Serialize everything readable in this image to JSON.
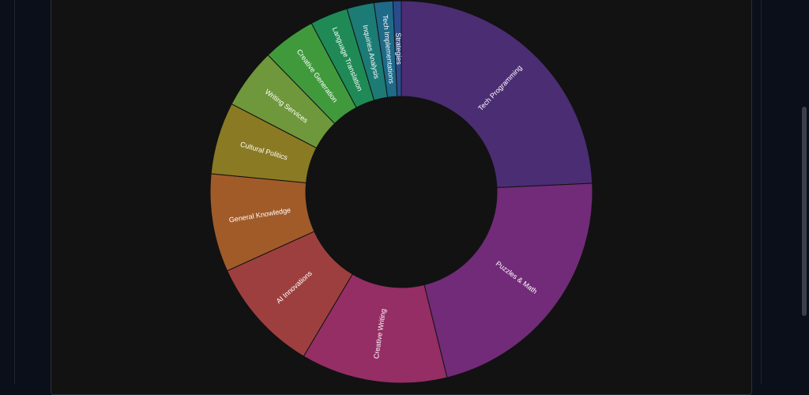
{
  "chart_data": {
    "type": "pie",
    "style": "donut",
    "slices": [
      {
        "label": "Tech Programming",
        "value": 24.3,
        "color": "#4b2d73"
      },
      {
        "label": "Puzzles & Math",
        "value": 21.9,
        "color": "#722b78"
      },
      {
        "label": "Creative Writing",
        "value": 12.4,
        "color": "#952e64"
      },
      {
        "label": "AI Innovations",
        "value": 9.7,
        "color": "#9e3f3f"
      },
      {
        "label": "General Knowledge",
        "value": 8.3,
        "color": "#a15b29"
      },
      {
        "label": "Cultural Politics",
        "value": 6.1,
        "color": "#8a7a23"
      },
      {
        "label": "Writing Services",
        "value": 5.1,
        "color": "#6f973b"
      },
      {
        "label": "Creative Generation",
        "value": 4.5,
        "color": "#409a3c"
      },
      {
        "label": "Language Translation",
        "value": 3.2,
        "color": "#1f8a55"
      },
      {
        "label": "Inquiries Analysis",
        "value": 2.3,
        "color": "#1c7b75"
      },
      {
        "label": "Tech Implementations",
        "value": 1.6,
        "color": "#1e6a88"
      },
      {
        "label": "Strategies",
        "value": 0.7,
        "color": "#2b4c8c"
      }
    ]
  }
}
